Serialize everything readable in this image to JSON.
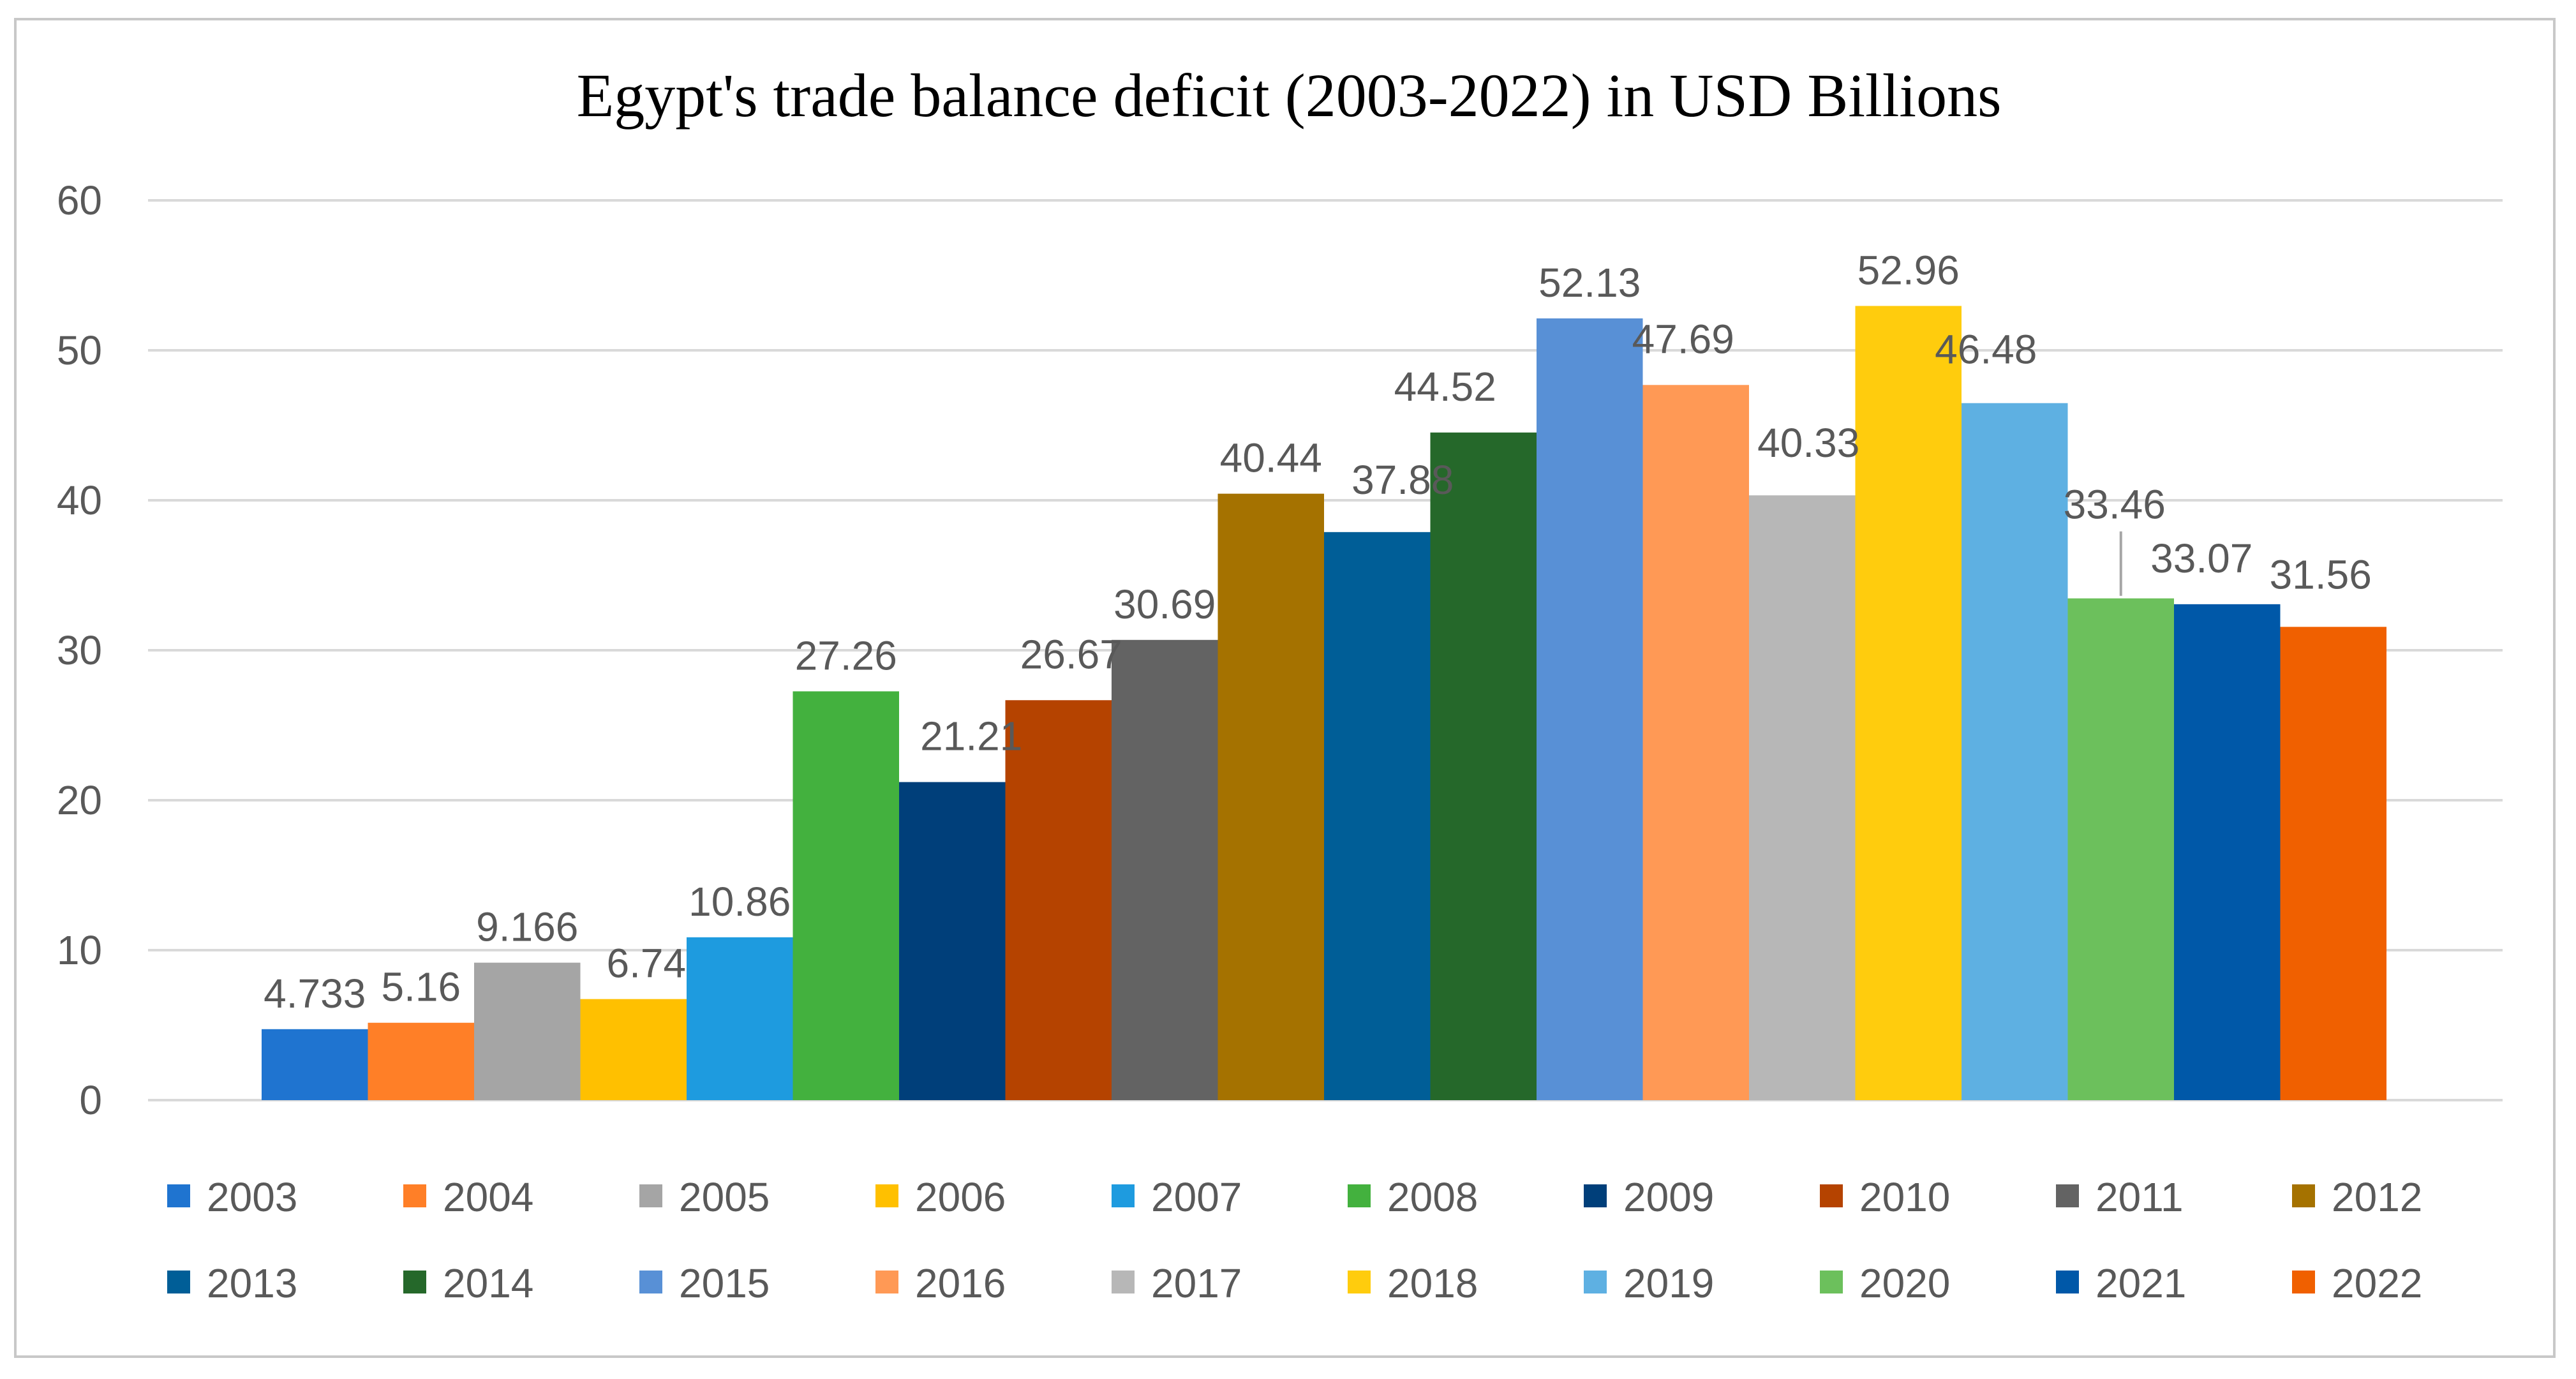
{
  "chart_data": {
    "type": "bar",
    "title": "Egypt's trade balance deficit (2003-2022) in USD Billions",
    "xlabel": "",
    "ylabel": "",
    "ylim": [
      0,
      60
    ],
    "yticks": [
      0,
      10,
      20,
      30,
      40,
      50,
      60
    ],
    "ytick_labels": [
      "0",
      "10",
      "20",
      "30",
      "40",
      "50",
      "60"
    ],
    "grid": true,
    "legend_position": "bottom",
    "categories": [
      ""
    ],
    "series": [
      {
        "name": "2003",
        "value": 4.733,
        "label": "4.733",
        "color": "#1f74d0"
      },
      {
        "name": "2004",
        "value": 5.16,
        "label": "5.16",
        "color": "#ff7f27"
      },
      {
        "name": "2005",
        "value": 9.166,
        "label": "9.166",
        "color": "#a5a5a5"
      },
      {
        "name": "2006",
        "value": 6.74,
        "label": "6.74",
        "color": "#ffc000"
      },
      {
        "name": "2007",
        "value": 10.86,
        "label": "10.86",
        "color": "#1e9bdf"
      },
      {
        "name": "2008",
        "value": 27.26,
        "label": "27.26",
        "color": "#43b13e"
      },
      {
        "name": "2009",
        "value": 21.21,
        "label": "21.21",
        "color": "#003f7a"
      },
      {
        "name": "2010",
        "value": 26.67,
        "label": "26.67",
        "color": "#b54300"
      },
      {
        "name": "2011",
        "value": 30.69,
        "label": "30.69",
        "color": "#636363"
      },
      {
        "name": "2012",
        "value": 40.44,
        "label": "40.44",
        "color": "#a57200"
      },
      {
        "name": "2013",
        "value": 37.88,
        "label": "37.88",
        "color": "#005e97"
      },
      {
        "name": "2014",
        "value": 44.52,
        "label": "44.52",
        "color": "#25682a"
      },
      {
        "name": "2015",
        "value": 52.13,
        "label": "52.13",
        "color": "#5890d6"
      },
      {
        "name": "2016",
        "value": 47.69,
        "label": "47.69",
        "color": "#ff9955"
      },
      {
        "name": "2017",
        "value": 40.33,
        "label": "40.33",
        "color": "#b7b7b7"
      },
      {
        "name": "2018",
        "value": 52.96,
        "label": "52.96",
        "color": "#ffcc0d"
      },
      {
        "name": "2019",
        "value": 46.48,
        "label": "46.48",
        "color": "#5eb0e2"
      },
      {
        "name": "2020",
        "value": 33.46,
        "label": "33.46",
        "color": "#6cc05c"
      },
      {
        "name": "2021",
        "value": 33.07,
        "label": "33.07",
        "color": "#0058a8"
      },
      {
        "name": "2022",
        "value": 31.56,
        "label": "31.56",
        "color": "#f06000"
      }
    ]
  },
  "colors": {
    "gridline": "#d9d9d9",
    "axis_text": "#595959",
    "frame": "#c8c8c8",
    "leader_line": "#a6a6a6"
  }
}
